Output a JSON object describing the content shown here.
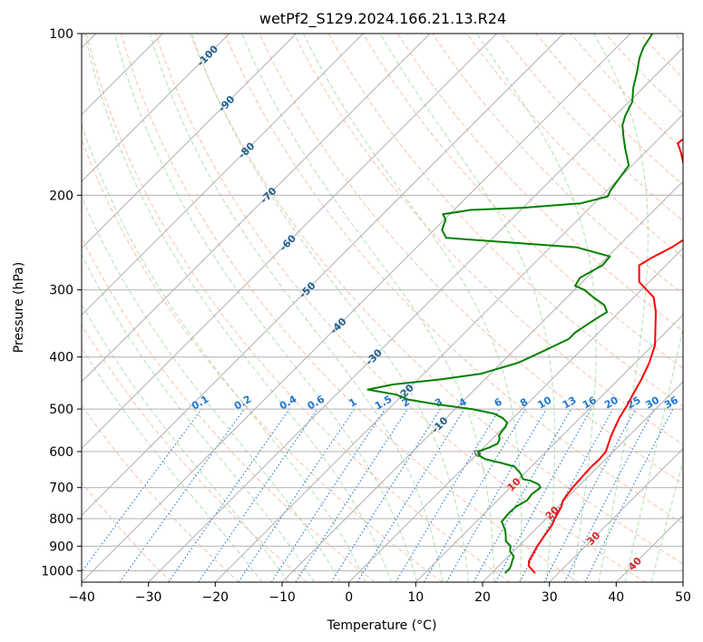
{
  "chart_data": {
    "type": "line",
    "title": "wetPf2_S129.2024.166.21.13.R24",
    "xlabel": "Temperature (°C)",
    "ylabel": "Pressure (hPa)",
    "xlim": [
      -40,
      50
    ],
    "ylim": [
      1050,
      100
    ],
    "y_scale": "log",
    "grid": true,
    "x_ticks": [
      -40,
      -30,
      -20,
      -10,
      0,
      10,
      20,
      30,
      40,
      50
    ],
    "y_ticks": [
      100,
      200,
      300,
      400,
      500,
      600,
      700,
      800,
      900,
      1000
    ],
    "skew_deg": 45,
    "series": [
      {
        "color": "#ff0000",
        "points": [
          [
            26.5,
            1010
          ],
          [
            24.5,
            980
          ],
          [
            23.8,
            960
          ],
          [
            23.3,
            930
          ],
          [
            22.8,
            900
          ],
          [
            22.3,
            860
          ],
          [
            21.8,
            820
          ],
          [
            21.3,
            800
          ],
          [
            20.5,
            760
          ],
          [
            19.8,
            740
          ],
          [
            19.3,
            700
          ],
          [
            19.1,
            660
          ],
          [
            19.0,
            640
          ],
          [
            19.1,
            620
          ],
          [
            18.9,
            600
          ],
          [
            17.3,
            560
          ],
          [
            15.9,
            520
          ],
          [
            15.1,
            490
          ],
          [
            14.4,
            470
          ],
          [
            13.4,
            440
          ],
          [
            12.1,
            410
          ],
          [
            10.3,
            380
          ],
          [
            7.5,
            350
          ],
          [
            5.5,
            330
          ],
          [
            3.0,
            310
          ],
          [
            -1.5,
            290
          ],
          [
            -4.0,
            270
          ],
          [
            -3.3,
            262
          ],
          [
            -1.8,
            250
          ],
          [
            -1.0,
            240
          ],
          [
            -0.8,
            228
          ],
          [
            -1.5,
            218
          ],
          [
            -3.5,
            205
          ],
          [
            -5.5,
            195
          ],
          [
            -8.5,
            185
          ],
          [
            -12.5,
            175
          ],
          [
            -14.5,
            167
          ],
          [
            -16.5,
            160
          ],
          [
            -16.0,
            153
          ],
          [
            -16.0,
            145
          ],
          [
            -17.5,
            138
          ],
          [
            -19.5,
            130
          ],
          [
            -20.5,
            123
          ],
          [
            -21.5,
            117
          ],
          [
            -22.5,
            111
          ],
          [
            -23.5,
            105
          ],
          [
            -24.5,
            100
          ]
        ]
      },
      {
        "color": "#008000",
        "points": [
          [
            22.0,
            1010
          ],
          [
            22.0,
            990
          ],
          [
            21.7,
            975
          ],
          [
            21.3,
            960
          ],
          [
            20.8,
            940
          ],
          [
            19.5,
            920
          ],
          [
            18.8,
            900
          ],
          [
            17.3,
            880
          ],
          [
            16.5,
            860
          ],
          [
            15.6,
            840
          ],
          [
            13.8,
            810
          ],
          [
            13.6,
            780
          ],
          [
            13.7,
            760
          ],
          [
            14.4,
            740
          ],
          [
            14.2,
            720
          ],
          [
            14.5,
            700
          ],
          [
            13.7,
            690
          ],
          [
            12.0,
            680
          ],
          [
            10.6,
            675
          ],
          [
            9.5,
            660
          ],
          [
            7.5,
            640
          ],
          [
            5.0,
            630
          ],
          [
            2.0,
            620
          ],
          [
            0.5,
            610
          ],
          [
            -0.2,
            600
          ],
          [
            0.8,
            590
          ],
          [
            1.5,
            580
          ],
          [
            1.2,
            570
          ],
          [
            0.5,
            560
          ],
          [
            0.3,
            550
          ],
          [
            0.2,
            540
          ],
          [
            -0.2,
            530
          ],
          [
            -1.5,
            520
          ],
          [
            -3.5,
            510
          ],
          [
            -7.5,
            500
          ],
          [
            -13.5,
            490
          ],
          [
            -18.5,
            480
          ],
          [
            -21.0,
            470
          ],
          [
            -26.0,
            460
          ],
          [
            -23.0,
            450
          ],
          [
            -16.5,
            440
          ],
          [
            -11.5,
            430
          ],
          [
            -9.5,
            420
          ],
          [
            -7.5,
            410
          ],
          [
            -6.5,
            400
          ],
          [
            -5.5,
            390
          ],
          [
            -4.5,
            380
          ],
          [
            -3.5,
            370
          ],
          [
            -3.5,
            360
          ],
          [
            -3.0,
            350
          ],
          [
            -2.5,
            340
          ],
          [
            -1.8,
            330
          ],
          [
            -3.3,
            320
          ],
          [
            -6.0,
            310
          ],
          [
            -8.5,
            300
          ],
          [
            -10.5,
            295
          ],
          [
            -11.0,
            285
          ],
          [
            -10.5,
            280
          ],
          [
            -9.5,
            270
          ],
          [
            -9.7,
            260
          ],
          [
            -16.0,
            250
          ],
          [
            -37.0,
            240
          ],
          [
            -38.8,
            232
          ],
          [
            -39.8,
            222
          ],
          [
            -41.0,
            217
          ],
          [
            -37.5,
            213
          ],
          [
            -30.0,
            211
          ],
          [
            -22.0,
            207
          ],
          [
            -19.0,
            201
          ],
          [
            -19.5,
            196
          ],
          [
            -20.0,
            186
          ],
          [
            -20.5,
            176
          ],
          [
            -23.5,
            164
          ],
          [
            -25.5,
            156
          ],
          [
            -27.5,
            148
          ],
          [
            -28.5,
            142
          ],
          [
            -29.5,
            134
          ],
          [
            -31.5,
            126
          ],
          [
            -33.0,
            119
          ],
          [
            -35.0,
            111
          ],
          [
            -36.0,
            106
          ],
          [
            -36.7,
            100
          ]
        ]
      }
    ],
    "isotherm_labels": [
      {
        "t": -100,
        "p": 110
      },
      {
        "t": -90,
        "p": 135
      },
      {
        "t": -80,
        "p": 165
      },
      {
        "t": -70,
        "p": 200
      },
      {
        "t": -60,
        "p": 245
      },
      {
        "t": -50,
        "p": 300
      },
      {
        "t": -40,
        "p": 350
      },
      {
        "t": -30,
        "p": 400
      },
      {
        "t": -20,
        "p": 465
      },
      {
        "t": -10,
        "p": 535
      },
      {
        "t": 0,
        "p": 605
      },
      {
        "t": 10,
        "p": 690
      },
      {
        "t": 20,
        "p": 780
      },
      {
        "t": 30,
        "p": 870
      },
      {
        "t": 40,
        "p": 970
      }
    ],
    "mixing_ratio_labels": [
      "0.1",
      "0.2",
      "0.4",
      "0.6",
      "1",
      "1.5",
      "2",
      "3",
      "4",
      "6",
      "8",
      "10",
      "13",
      "16",
      "20",
      "25",
      "30",
      "36"
    ],
    "colors": {
      "temperature": "#ff0000",
      "dewpoint": "#008000",
      "dry_adiabat": "#f4a988",
      "moist_adiabat": "#9fd89f",
      "mixing_ratio": "#1f77d0",
      "isotherm_neg": "#1f5f8f",
      "isotherm_zero": "#808080",
      "isotherm_pos": "#d62728"
    }
  }
}
